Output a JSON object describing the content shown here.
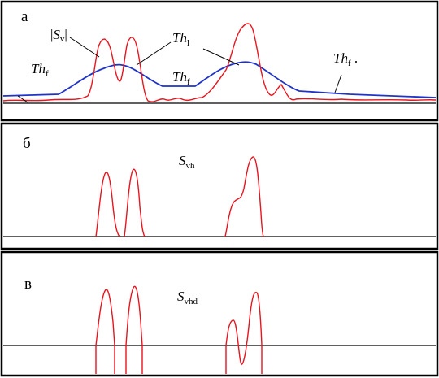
{
  "panels": [
    {
      "letter": "а",
      "labels": {
        "sv": {
          "pre": "|",
          "main": "S",
          "sub": "v",
          "post": "|"
        },
        "thf_left": {
          "main": "Th",
          "sub": "f"
        },
        "thl": {
          "main": "Th",
          "sub": "l"
        },
        "thf_mid": {
          "main": "Th",
          "sub": "f"
        },
        "thf_right": {
          "main": "Th",
          "sub": "f",
          "post": " ."
        }
      }
    },
    {
      "letter": "б",
      "labels": {
        "svh": {
          "main": "S",
          "sub": "vh"
        }
      }
    },
    {
      "letter": "в",
      "labels": {
        "svhd": {
          "main": "S",
          "sub": "vhd"
        }
      }
    }
  ],
  "colors": {
    "signal": "#e8141e",
    "threshold": "#1f33c8",
    "frame": "#000000"
  }
}
